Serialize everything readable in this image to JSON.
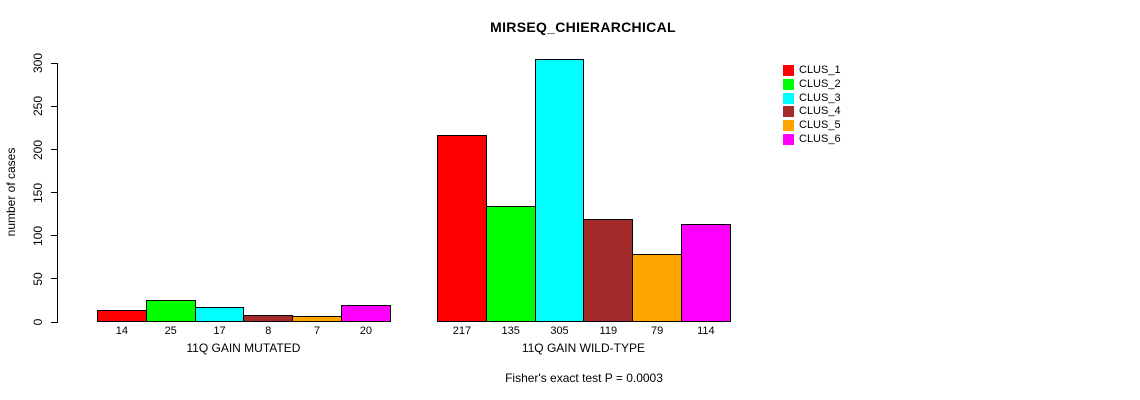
{
  "chart_data": {
    "type": "bar",
    "title": "MIRSEQ_CHIERARCHICAL",
    "ylabel": "number of cases",
    "xlabel": "",
    "ylim": [
      0,
      305
    ],
    "yticks": [
      0,
      50,
      100,
      150,
      200,
      250,
      300
    ],
    "categories": [
      "11Q GAIN MUTATED",
      "11Q GAIN WILD-TYPE"
    ],
    "series": [
      {
        "name": "CLUS_1",
        "color": "#ff0000",
        "values": [
          14,
          217
        ]
      },
      {
        "name": "CLUS_2",
        "color": "#00ff00",
        "values": [
          25,
          135
        ]
      },
      {
        "name": "CLUS_3",
        "color": "#00ffff",
        "values": [
          17,
          305
        ]
      },
      {
        "name": "CLUS_4",
        "color": "#a52a2a",
        "values": [
          8,
          119
        ]
      },
      {
        "name": "CLUS_5",
        "color": "#ffa500",
        "values": [
          7,
          79
        ]
      },
      {
        "name": "CLUS_6",
        "color": "#ff00ff",
        "values": [
          20,
          114
        ]
      }
    ],
    "bar_value_labels_shown": true,
    "annotation": "Fisher's exact test P = 0.0003",
    "legend_position": "right",
    "grid": false,
    "axis_color": "#000000",
    "background_color": "#ffffff"
  }
}
